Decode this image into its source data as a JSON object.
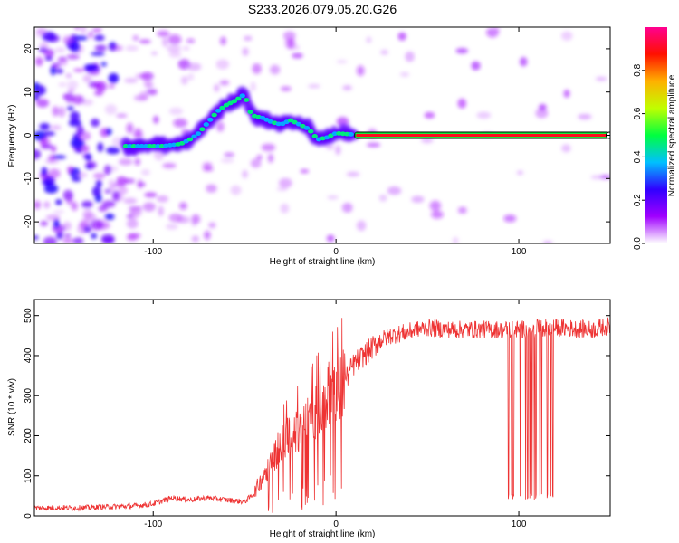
{
  "title": "S233.2026.079.05.20.G26",
  "chart_data": [
    {
      "type": "heatmap",
      "xlabel": "Height of straight line (km)",
      "ylabel": "Frequency (Hz)",
      "xlim": [
        -165,
        150
      ],
      "ylim": [
        -25,
        25
      ],
      "xticks": [
        -100,
        0,
        100
      ],
      "yticks": [
        -20,
        -10,
        0,
        10,
        20
      ],
      "xtick_labels": [
        "-100",
        "0",
        "100"
      ],
      "ytick_labels": [
        "-20",
        "-10",
        "0",
        "10",
        "20"
      ],
      "colorbar": {
        "label": "Normalized spectral amplitude",
        "range": [
          0,
          1
        ],
        "ticks": [
          0.0,
          0.2,
          0.4,
          0.6,
          0.8
        ],
        "tick_labels": [
          "0.0",
          "0.2",
          "0.4",
          "0.6",
          "0.8"
        ],
        "colormap": [
          "#ffffff",
          "#a000ff",
          "#3000ff",
          "#00c0ff",
          "#00ff40",
          "#c0ff00",
          "#ffb000",
          "#ff1000",
          "#ff0090"
        ]
      },
      "ridge": {
        "x": [
          -115,
          -105,
          -95,
          -85,
          -80,
          -75,
          -70,
          -65,
          -60,
          -55,
          -50,
          -47,
          -45,
          -40,
          -35,
          -30,
          -25,
          -20,
          -15,
          -10,
          -5,
          0,
          5,
          10,
          20,
          40,
          60,
          80,
          100,
          120,
          149
        ],
        "y": [
          -2.5,
          -2.5,
          -2.5,
          -2.0,
          -1.0,
          0.5,
          3.0,
          5.5,
          7.0,
          8.0,
          9.5,
          5.5,
          4.5,
          4.0,
          3.0,
          2.5,
          3.5,
          2.5,
          1.5,
          -1.0,
          -0.5,
          0.5,
          0.3,
          0.2,
          0.0,
          0.0,
          0.0,
          0.0,
          0.0,
          0.0,
          0.0
        ]
      },
      "strong_band_start_km": 10
    },
    {
      "type": "line",
      "xlabel": "Height of straight line (km)",
      "ylabel": "SNR (10 * v/v)",
      "xlim": [
        -165,
        150
      ],
      "ylim": [
        0,
        540
      ],
      "xticks": [
        -100,
        0,
        100
      ],
      "yticks": [
        0,
        100,
        200,
        300,
        400,
        500
      ],
      "xtick_labels": [
        "-100",
        "0",
        "100"
      ],
      "ytick_labels": [
        "0",
        "100",
        "200",
        "300",
        "400",
        "500"
      ],
      "series": [
        {
          "name": "SNR",
          "color": "#ee3333",
          "x": [
            -165,
            -140,
            -110,
            -100,
            -90,
            -80,
            -70,
            -60,
            -50,
            -45,
            -40,
            -35,
            -30,
            -25,
            -20,
            -15,
            -10,
            -5,
            0,
            5,
            10,
            15,
            20,
            25,
            30,
            40,
            50,
            60,
            80,
            100,
            120,
            140,
            150
          ],
          "y": [
            20,
            20,
            25,
            30,
            45,
            40,
            45,
            40,
            35,
            55,
            100,
            140,
            180,
            200,
            220,
            240,
            270,
            300,
            310,
            340,
            380,
            400,
            420,
            440,
            450,
            460,
            470,
            465,
            465,
            465,
            470,
            465,
            475
          ]
        }
      ],
      "dropouts": {
        "x_range": [
          93,
          120
        ],
        "min_value": 40
      }
    }
  ]
}
